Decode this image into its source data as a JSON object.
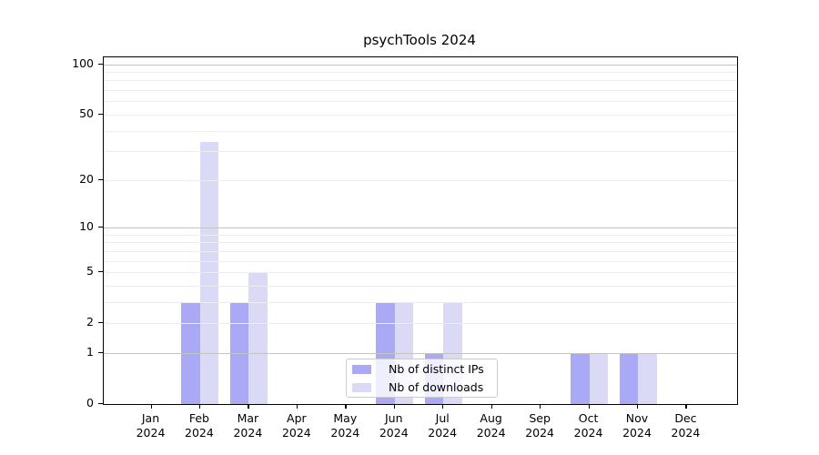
{
  "title": "psychTools 2024",
  "chart_data": {
    "type": "bar",
    "title": "psychTools 2024",
    "year": "2024",
    "categories": [
      "Jan",
      "Feb",
      "Mar",
      "Apr",
      "May",
      "Jun",
      "Jul",
      "Aug",
      "Sep",
      "Oct",
      "Nov",
      "Dec"
    ],
    "series": [
      {
        "name": "Nb of distinct IPs",
        "color": "#a9a9f5",
        "values": [
          0,
          3,
          3,
          0,
          0,
          3,
          1,
          0,
          0,
          1,
          1,
          0
        ]
      },
      {
        "name": "Nb of downloads",
        "color": "#dadaf7",
        "values": [
          0,
          34,
          5,
          0,
          0,
          3,
          3,
          0,
          0,
          1,
          1,
          0
        ]
      }
    ],
    "xlabel": "",
    "ylabel": "",
    "yscale": "log1p",
    "ylim": [
      0,
      110
    ],
    "yticks": [
      0,
      1,
      2,
      5,
      10,
      20,
      50,
      100
    ],
    "major_gridlines": [
      1,
      10,
      100
    ],
    "minor_gridlines": [
      2,
      3,
      4,
      5,
      6,
      7,
      8,
      9,
      20,
      30,
      40,
      50,
      60,
      70,
      80,
      90
    ],
    "grid": true,
    "legend_position": "inside bottom-center"
  },
  "colors": {
    "axis": "#000000",
    "major_grid": "#c4c4c4",
    "minor_grid": "#ededed",
    "legend_border": "#cccccc",
    "background": "#ffffff"
  }
}
